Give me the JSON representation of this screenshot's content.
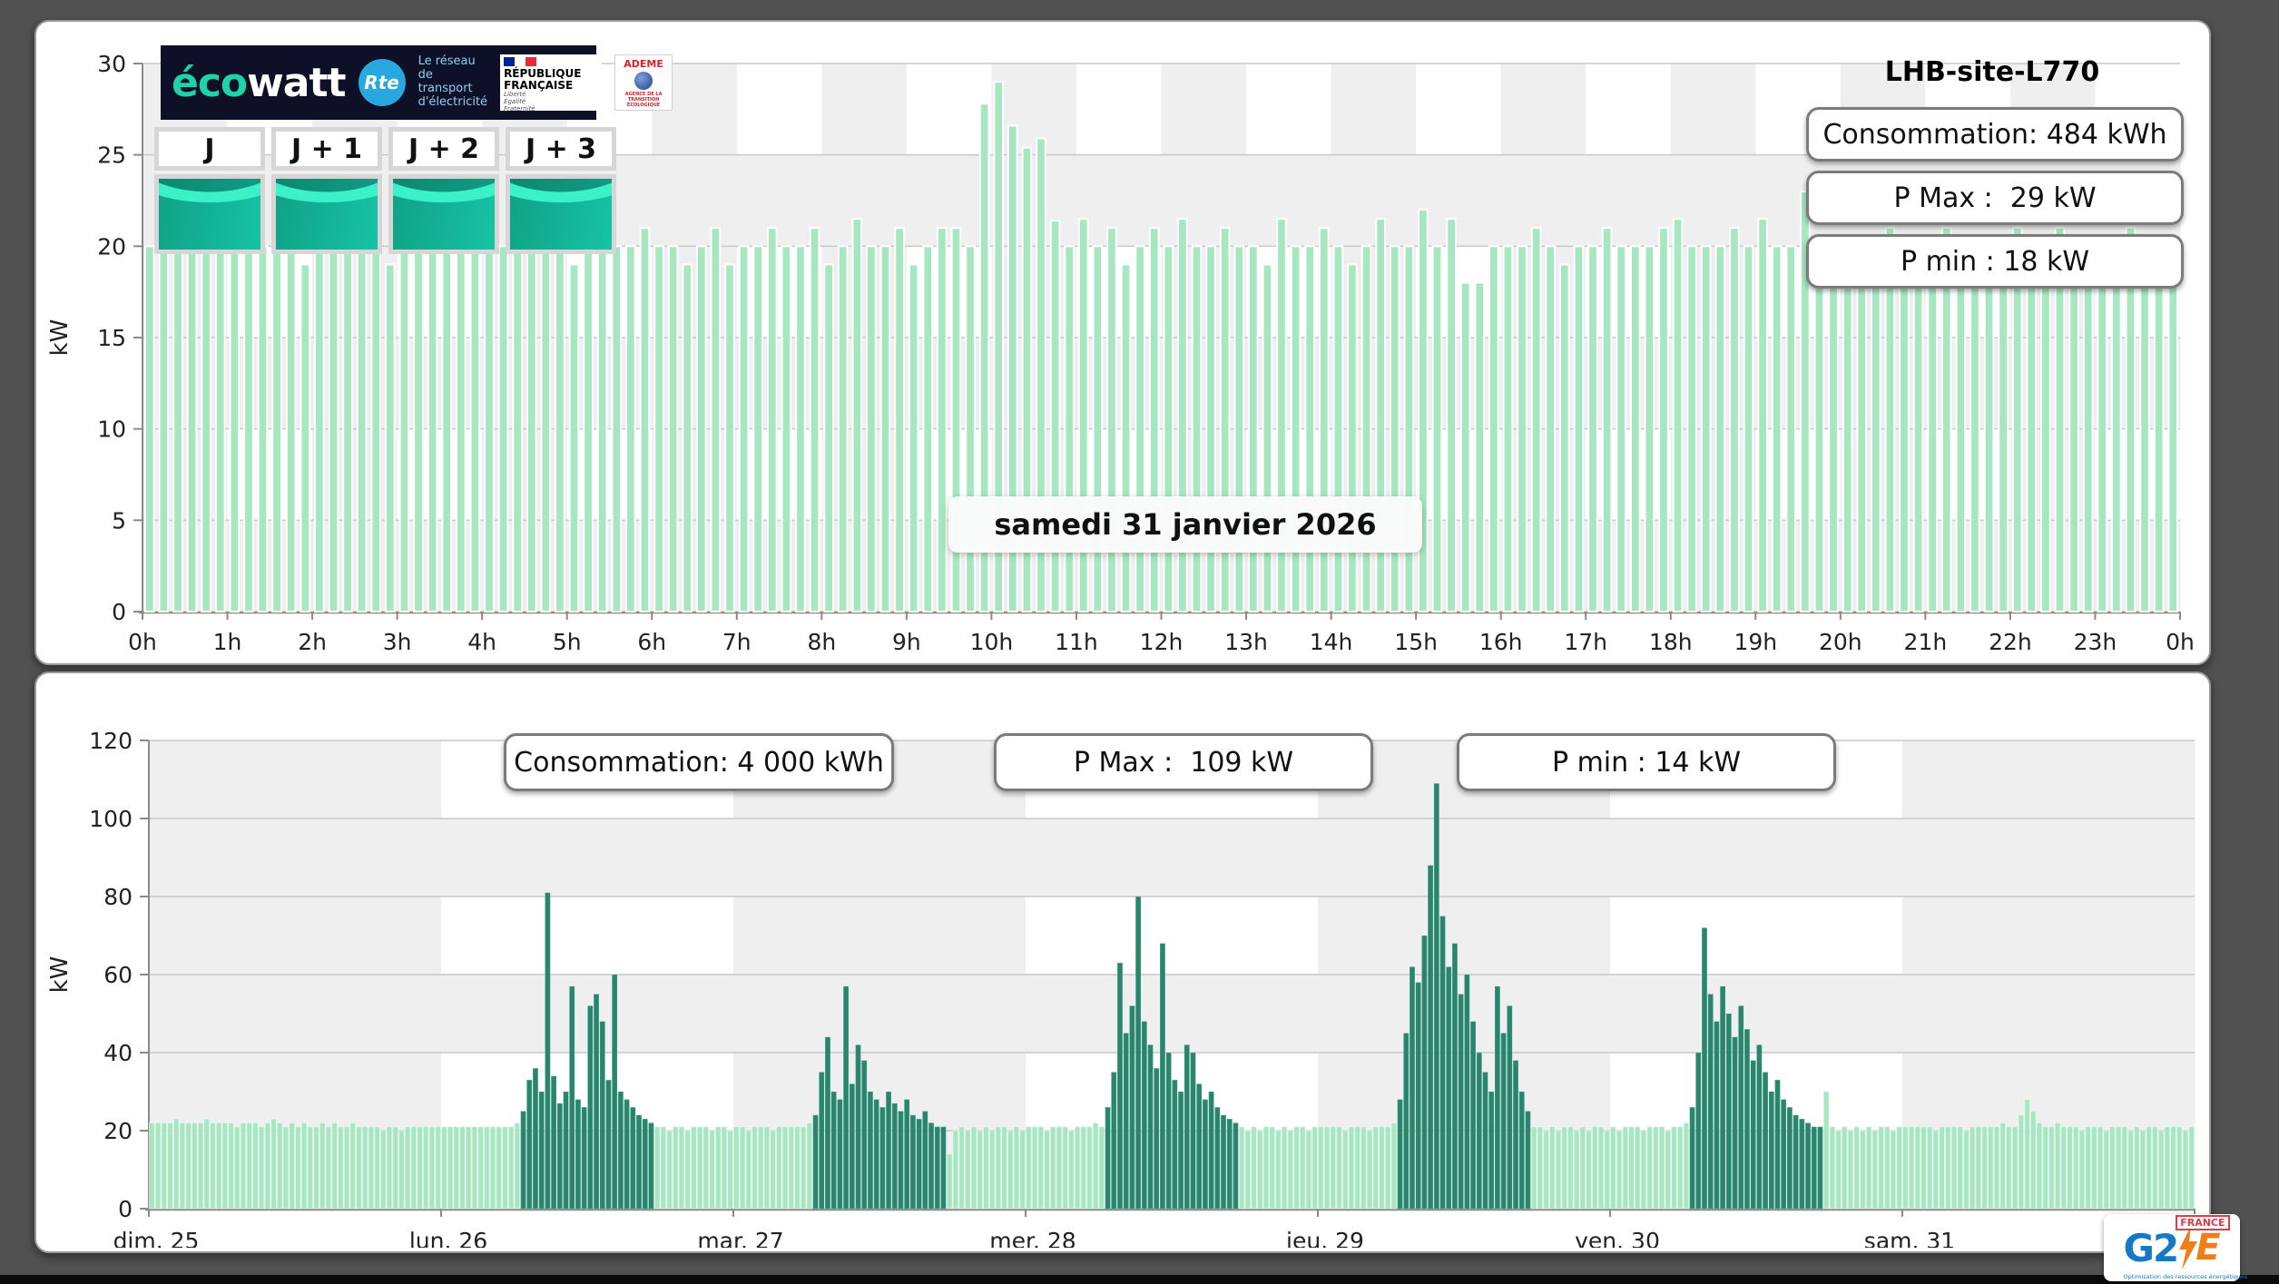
{
  "page": {
    "site_title": "LHB-site-L770"
  },
  "branding": {
    "ecowatt": {
      "eco": "éco",
      "watt": "watt"
    },
    "rte": {
      "abbr": "Rte",
      "tagline": "Le réseau\nde transport\nd'électricité"
    },
    "republique": {
      "name": "RÉPUBLIQUE\nFRANÇAISE",
      "motto": "Liberté\nÉgalité\nFraternité"
    },
    "ademe": {
      "name": "ADEME",
      "sub": "AGENCE DE LA TRANSITION ÉCOLOGIQUE"
    },
    "g2e": {
      "g2": "G2",
      "e": "E",
      "country": "FRANCE",
      "tagline": "Optimisation des ressources énergétiques"
    }
  },
  "tabs": [
    {
      "label": "J"
    },
    {
      "label": "J + 1"
    },
    {
      "label": "J + 2"
    },
    {
      "label": "J + 3"
    }
  ],
  "colors": {
    "bar_light": "#a6e7c2",
    "bar_dark": "#27866b",
    "cell_gray": "#efefef",
    "cell_white": "#ffffff",
    "grid": "#c9c9c9",
    "axis": "#8a8a8a",
    "ecowatt_teal": "#1ed3a7",
    "rte_blue": "#29a8e0",
    "banner_navy": "#0d1026"
  },
  "chart_data": [
    {
      "name": "daily-load-curve",
      "type": "bar",
      "title": "LHB-site-L770",
      "date_label": "samedi 31 janvier 2026",
      "stats": [
        "Consommation: 484 kWh",
        "P Max :  29 kW",
        "P min : 18 kW"
      ],
      "ylabel": "kW",
      "ylim": [
        0,
        30
      ],
      "y_ticks": [
        0,
        5,
        10,
        15,
        20,
        25,
        30
      ],
      "x_tick_labels": [
        "0h",
        "1h",
        "2h",
        "3h",
        "4h",
        "5h",
        "6h",
        "7h",
        "8h",
        "9h",
        "10h",
        "11h",
        "12h",
        "13h",
        "14h",
        "15h",
        "16h",
        "17h",
        "18h",
        "19h",
        "20h",
        "21h",
        "22h",
        "23h",
        "0h"
      ],
      "interval_minutes": 10,
      "grid": true,
      "legend": false,
      "values_kw": [
        20,
        20,
        21,
        20,
        20,
        21,
        20,
        20,
        20,
        21,
        20,
        19,
        20,
        20,
        21,
        20,
        20,
        19,
        20,
        21,
        20,
        20,
        21,
        20,
        22.5,
        20,
        20,
        21,
        20,
        20,
        19,
        20,
        21.5,
        20,
        20,
        21,
        20,
        20,
        19,
        20,
        21,
        19,
        20,
        20,
        21,
        20,
        20,
        21,
        19,
        20,
        21.5,
        20,
        20,
        21,
        19,
        20,
        21,
        21,
        20,
        27.8,
        29,
        26.6,
        25.4,
        25.9,
        21.4,
        20,
        21.5,
        20,
        21,
        19,
        20,
        21,
        20,
        21.5,
        20,
        20,
        21,
        20,
        20,
        19,
        21.5,
        20,
        20,
        21,
        20,
        19,
        20,
        21.5,
        20,
        20,
        22,
        20,
        21.5,
        18,
        18,
        20,
        20,
        20,
        21,
        20,
        19,
        20,
        20,
        21,
        20,
        20,
        20,
        21,
        21.5,
        20,
        20,
        20,
        21,
        20,
        21.5,
        20,
        20,
        23,
        18.5,
        18.5,
        20,
        20,
        20,
        21,
        20,
        20,
        20,
        21,
        20,
        19,
        20,
        20,
        21,
        20,
        20,
        21,
        20,
        20,
        20,
        20,
        21,
        20,
        20,
        18
      ]
    },
    {
      "name": "weekly-load-curve",
      "type": "bar",
      "stats": [
        "Consommation: 4 000 kWh",
        "P Max :  109 kW",
        "P min : 14 kW"
      ],
      "ylabel": "kW",
      "ylim": [
        0,
        120
      ],
      "y_ticks": [
        0,
        20,
        40,
        60,
        80,
        100,
        120
      ],
      "interval_minutes": 30,
      "grid": true,
      "legend": false,
      "days": [
        {
          "label": "dim. 25",
          "dark_range": null,
          "values": [
            22,
            22,
            22,
            22,
            23,
            22,
            22,
            22,
            22,
            23,
            22,
            22,
            22,
            22,
            21,
            22,
            22,
            22,
            21,
            22,
            23,
            22,
            21,
            22,
            21,
            22,
            21,
            21,
            22,
            21,
            22,
            21,
            21,
            22,
            21,
            21,
            21,
            21,
            20,
            21,
            21,
            20,
            21,
            21,
            21,
            21,
            21,
            21
          ]
        },
        {
          "label": "lun. 26",
          "dark_range": [
            13,
            34
          ],
          "values": [
            21,
            21,
            21,
            21,
            21,
            21,
            21,
            21,
            21,
            21,
            21,
            21,
            22,
            25,
            33,
            36,
            30,
            81,
            34,
            27,
            30,
            57,
            28,
            26,
            52,
            55,
            48,
            33,
            60,
            30,
            28,
            26,
            24,
            23,
            22,
            21,
            21,
            20,
            21,
            21,
            20,
            21,
            21,
            21,
            20,
            21,
            21,
            20
          ]
        },
        {
          "label": "mar. 27",
          "dark_range": [
            13,
            34
          ],
          "values": [
            21,
            21,
            20,
            21,
            21,
            21,
            20,
            21,
            21,
            21,
            21,
            21,
            22,
            24,
            35,
            44,
            30,
            28,
            57,
            32,
            42,
            38,
            30,
            28,
            26,
            30,
            27,
            25,
            28,
            24,
            23,
            25,
            22,
            21,
            21,
            14,
            20,
            21,
            20,
            21,
            20,
            21,
            20,
            21,
            21,
            20,
            21,
            20
          ]
        },
        {
          "label": "mer. 28",
          "dark_range": [
            13,
            34
          ],
          "values": [
            21,
            21,
            21,
            20,
            21,
            21,
            21,
            20,
            21,
            21,
            21,
            22,
            21,
            26,
            35,
            63,
            45,
            52,
            80,
            48,
            42,
            36,
            68,
            40,
            33,
            30,
            42,
            40,
            32,
            28,
            30,
            26,
            24,
            23,
            22,
            21,
            20,
            21,
            20,
            21,
            21,
            20,
            21,
            20,
            21,
            21,
            20,
            21
          ]
        },
        {
          "label": "jeu. 29",
          "dark_range": [
            13,
            34
          ],
          "values": [
            21,
            21,
            21,
            21,
            20,
            21,
            21,
            21,
            20,
            21,
            21,
            21,
            22,
            28,
            45,
            62,
            58,
            70,
            88,
            109,
            75,
            62,
            68,
            55,
            60,
            48,
            40,
            35,
            30,
            57,
            45,
            52,
            38,
            30,
            25,
            21,
            21,
            20,
            21,
            20,
            21,
            21,
            20,
            21,
            20,
            21,
            21,
            20
          ]
        },
        {
          "label": "ven. 30",
          "dark_range": [
            13,
            34
          ],
          "values": [
            21,
            20,
            21,
            21,
            21,
            20,
            21,
            21,
            21,
            20,
            21,
            21,
            22,
            26,
            40,
            72,
            55,
            48,
            57,
            50,
            44,
            52,
            46,
            38,
            42,
            35,
            30,
            33,
            28,
            26,
            24,
            23,
            22,
            21,
            21,
            30,
            21,
            20,
            21,
            20,
            21,
            20,
            21,
            20,
            21,
            21,
            20,
            21
          ]
        },
        {
          "label": "sam. 31",
          "dark_range": null,
          "values": [
            21,
            21,
            21,
            21,
            21,
            20,
            21,
            21,
            21,
            21,
            20,
            21,
            21,
            21,
            21,
            21,
            22,
            21,
            21,
            24,
            28,
            25,
            22,
            21,
            21,
            22,
            21,
            21,
            21,
            20,
            21,
            21,
            21,
            20,
            21,
            21,
            21,
            20,
            21,
            20,
            21,
            21,
            20,
            21,
            21,
            21,
            20,
            21
          ]
        }
      ]
    }
  ]
}
